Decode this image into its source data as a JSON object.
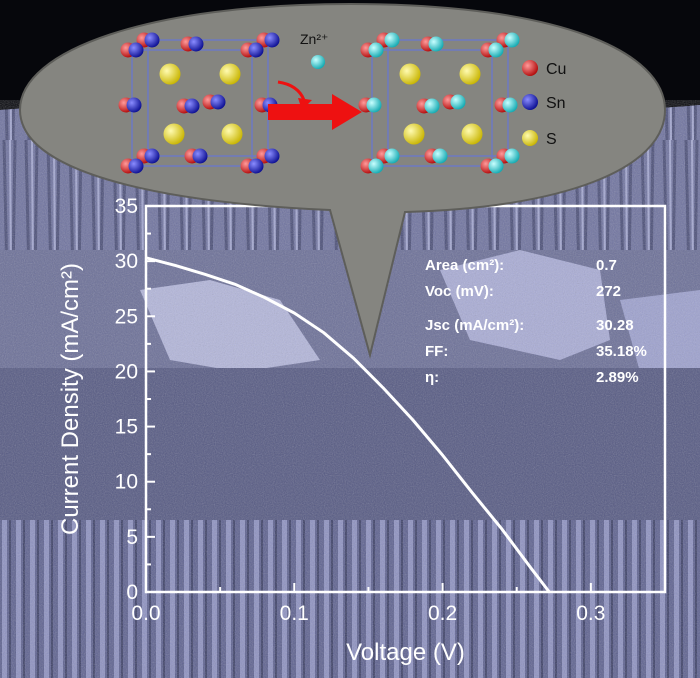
{
  "colors": {
    "background_dark": "#06070c",
    "sem_base": "#6b6f98",
    "sem_light": "#a6aad0",
    "sem_dark": "#3f4366",
    "bubble_fill": "#858580",
    "axis": "#ffffff",
    "curve": "#ffffff",
    "cu_atom": "#e01818",
    "sn_atom": "#1a1fcf",
    "s_atom": "#f2e21a",
    "zn_atom": "#2fd8d8",
    "arrow": "#ee1111"
  },
  "legend": {
    "items": [
      {
        "label": "Cu",
        "color": "#e01818",
        "icon": "red-sphere"
      },
      {
        "label": "Sn",
        "color": "#1a1fcf",
        "icon": "blue-sphere"
      },
      {
        "label": "S",
        "color": "#f2e21a",
        "icon": "yellow-sphere"
      }
    ]
  },
  "ion": {
    "label": "Zn²⁺",
    "icon": "cyan-sphere"
  },
  "chart_data": {
    "type": "line",
    "xlabel": "Voltage (V)",
    "ylabel": "Current Density (mA/cm²)",
    "xlim": [
      0,
      0.35
    ],
    "ylim": [
      0,
      35
    ],
    "xticks": [
      0.0,
      0.1,
      0.2,
      0.3
    ],
    "xtick_labels": [
      "0.0",
      "0.1",
      "0.2",
      "0.3"
    ],
    "yticks": [
      0,
      5,
      10,
      15,
      20,
      25,
      30,
      35
    ],
    "ytick_labels": [
      "0",
      "5",
      "10",
      "15",
      "20",
      "25",
      "30",
      "35"
    ],
    "grid": false,
    "series": [
      {
        "x": [
          0.0,
          0.02,
          0.04,
          0.06,
          0.08,
          0.1,
          0.12,
          0.14,
          0.16,
          0.18,
          0.2,
          0.22,
          0.24,
          0.26,
          0.272
        ],
        "y": [
          30.3,
          29.6,
          28.8,
          27.9,
          26.7,
          25.3,
          23.5,
          21.2,
          18.5,
          15.6,
          12.4,
          9.0,
          5.7,
          2.1,
          0.0
        ]
      }
    ],
    "annotations": {
      "parameters": [
        {
          "label": "Area (cm²):",
          "value": "0.7"
        },
        {
          "label": "Voc (mV):",
          "value": "272"
        },
        {
          "label": "Jsc (mA/cm²):",
          "value": "30.28"
        },
        {
          "label": "FF:",
          "value": "35.18%"
        },
        {
          "label": "η:",
          "value": "2.89%"
        }
      ]
    }
  }
}
